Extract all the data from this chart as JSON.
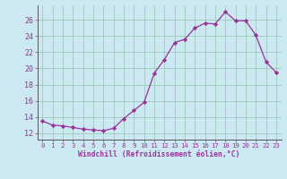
{
  "x": [
    0,
    1,
    2,
    3,
    4,
    5,
    6,
    7,
    8,
    9,
    10,
    11,
    12,
    13,
    14,
    15,
    16,
    17,
    18,
    19,
    20,
    21,
    22,
    23
  ],
  "y": [
    13.5,
    13.0,
    12.9,
    12.7,
    12.5,
    12.4,
    12.3,
    12.6,
    13.8,
    14.8,
    15.8,
    19.4,
    21.1,
    23.2,
    23.6,
    25.0,
    25.6,
    25.5,
    27.0,
    25.9,
    25.9,
    24.1,
    20.8,
    19.5
  ],
  "line_color": "#993399",
  "marker": "D",
  "marker_size": 2.2,
  "bg_color": "#cce8f0",
  "grid_color": "#99ccbb",
  "xlabel": "Windchill (Refroidissement éolien,°C)",
  "ylabel_ticks": [
    12,
    14,
    16,
    18,
    20,
    22,
    24,
    26
  ],
  "xticks": [
    0,
    1,
    2,
    3,
    4,
    5,
    6,
    7,
    8,
    9,
    10,
    11,
    12,
    13,
    14,
    15,
    16,
    17,
    18,
    19,
    20,
    21,
    22,
    23
  ],
  "ylim": [
    11.2,
    27.8
  ],
  "xlim": [
    -0.5,
    23.5
  ],
  "label_color": "#993399",
  "font_family": "monospace",
  "xlabel_fontsize": 5.8,
  "xtick_fontsize": 5.2,
  "ytick_fontsize": 6.0
}
